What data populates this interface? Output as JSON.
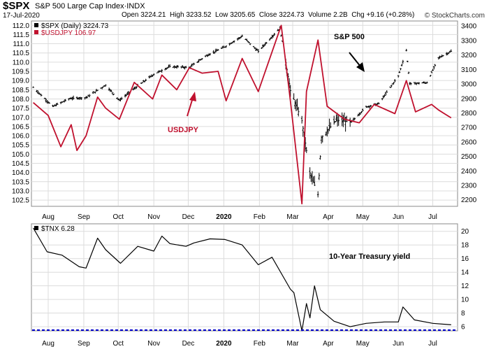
{
  "header": {
    "symbol": "$SPX",
    "full_name": "S&P 500 Large Cap Index",
    "exchange": "INDX",
    "date": "17-Jul-2020",
    "open_label": "Open",
    "open": "3224.21",
    "high_label": "High",
    "high": "3233.52",
    "low_label": "Low",
    "low": "3205.65",
    "close_label": "Close",
    "close": "3224.73",
    "volume_label": "Volume",
    "volume": "2.2B",
    "chg_label": "Chg",
    "chg": "+9.16 (+0.28%)",
    "brand": "© StockCharts.com"
  },
  "legend": {
    "spx": "$SPX (Daily) 3224.73",
    "usdjpy": "$USDJPY 106.97",
    "tnx": "$TNX 6.28"
  },
  "annotations": {
    "usdjpy": "USDJPY",
    "sp500": "S&P 500",
    "tnx": "10-Year Treasury yield"
  },
  "colors": {
    "spx": "#000000",
    "usdjpy": "#c0112e",
    "tnx": "#000000",
    "baseline": "#0000cc",
    "grid": "#dcdcdc"
  },
  "chart_data": [
    {
      "type": "line",
      "title": "S&P 500 Large Cap Index",
      "x_tick_labels": [
        "Aug",
        "Sep",
        "Oct",
        "Nov",
        "Dec",
        "2020",
        "Feb",
        "Mar",
        "Apr",
        "May",
        "Jun",
        "Jul"
      ],
      "left_axis": {
        "series": "$USDJPY",
        "ylim": [
          102.2,
          112.2
        ],
        "ticks": [
          "102.5",
          "103.0",
          "103.5",
          "104.0",
          "104.5",
          "105.0",
          "105.5",
          "106.0",
          "106.5",
          "107.0",
          "107.5",
          "108.0",
          "108.5",
          "109.0",
          "109.5",
          "110.0",
          "110.5",
          "111.0",
          "111.5",
          "112.0"
        ]
      },
      "right_axis": {
        "series": "$SPX",
        "ylim": [
          2160,
          3430
        ],
        "ticks": [
          "2200",
          "2300",
          "2400",
          "2500",
          "2600",
          "2700",
          "2800",
          "2900",
          "3000",
          "3100",
          "3200",
          "3300",
          "3400"
        ]
      },
      "series": [
        {
          "name": "$SPX (Daily)",
          "style": "ohlc-bars",
          "axis": "right",
          "x": [
            "2019-07-19",
            "2019-08-05",
            "2019-08-20",
            "2019-09-03",
            "2019-09-20",
            "2019-10-02",
            "2019-10-18",
            "2019-11-01",
            "2019-11-15",
            "2019-12-02",
            "2019-12-16",
            "2020-01-02",
            "2020-01-17",
            "2020-01-31",
            "2020-02-19",
            "2020-02-28",
            "2020-03-09",
            "2020-03-16",
            "2020-03-23",
            "2020-03-26",
            "2020-04-08",
            "2020-04-21",
            "2020-05-04",
            "2020-05-15",
            "2020-06-01",
            "2020-06-08",
            "2020-06-11",
            "2020-06-26",
            "2020-07-06",
            "2020-07-17"
          ],
          "values": [
            2976,
            2844,
            2900,
            2906,
            2992,
            2887,
            2986,
            3067,
            3120,
            3114,
            3192,
            3257,
            3330,
            3225,
            3386,
            2954,
            2746,
            2386,
            2237,
            2630,
            2750,
            2736,
            2842,
            2864,
            3055,
            3232,
            3002,
            3009,
            3180,
            3225
          ]
        },
        {
          "name": "$USDJPY",
          "style": "line",
          "axis": "left",
          "x": [
            "2019-07-19",
            "2019-08-01",
            "2019-08-12",
            "2019-08-21",
            "2019-08-26",
            "2019-09-03",
            "2019-09-13",
            "2019-09-20",
            "2019-10-02",
            "2019-10-15",
            "2019-10-31",
            "2019-11-08",
            "2019-11-21",
            "2019-12-02",
            "2019-12-13",
            "2019-12-27",
            "2020-01-03",
            "2020-01-17",
            "2020-01-31",
            "2020-02-20",
            "2020-02-28",
            "2020-03-09",
            "2020-03-13",
            "2020-03-23",
            "2020-03-31",
            "2020-04-15",
            "2020-04-28",
            "2020-05-11",
            "2020-05-29",
            "2020-06-08",
            "2020-06-16",
            "2020-06-30",
            "2020-07-06",
            "2020-07-17"
          ],
          "values": [
            107.8,
            107.1,
            105.4,
            106.6,
            105.2,
            106.0,
            108.1,
            107.5,
            106.9,
            108.9,
            108.0,
            109.3,
            108.5,
            109.7,
            109.4,
            109.5,
            107.9,
            110.2,
            108.4,
            112.0,
            107.9,
            102.3,
            108.4,
            111.2,
            107.6,
            106.9,
            106.7,
            107.7,
            107.2,
            109.0,
            107.3,
            107.7,
            107.4,
            106.97
          ]
        }
      ]
    },
    {
      "type": "line",
      "series_name": "$TNX",
      "annotation": "10-Year Treasury yield",
      "x_tick_labels": [
        "Aug",
        "Sep",
        "Oct",
        "Nov",
        "Dec",
        "2020",
        "Feb",
        "Mar",
        "Apr",
        "May",
        "Jun",
        "Jul"
      ],
      "right_axis": {
        "ylim": [
          5.5,
          21
        ],
        "ticks": [
          "6",
          "8",
          "10",
          "12",
          "14",
          "16",
          "18",
          "20"
        ]
      },
      "baseline_value": 5.5,
      "series": [
        {
          "name": "$TNX",
          "axis": "right",
          "x": [
            "2019-07-19",
            "2019-07-31",
            "2019-08-13",
            "2019-08-28",
            "2019-09-03",
            "2019-09-13",
            "2019-09-20",
            "2019-10-03",
            "2019-10-18",
            "2019-11-01",
            "2019-11-08",
            "2019-11-15",
            "2019-11-29",
            "2019-12-06",
            "2019-12-20",
            "2020-01-02",
            "2020-01-17",
            "2020-01-31",
            "2020-02-12",
            "2020-02-28",
            "2020-03-02",
            "2020-03-09",
            "2020-03-13",
            "2020-03-16",
            "2020-03-20",
            "2020-03-25",
            "2020-04-06",
            "2020-04-20",
            "2020-05-04",
            "2020-05-20",
            "2020-06-01",
            "2020-06-05",
            "2020-06-15",
            "2020-07-01",
            "2020-07-17"
          ],
          "values": [
            20.5,
            17.0,
            16.5,
            14.8,
            14.6,
            19.0,
            17.3,
            15.3,
            17.8,
            17.1,
            19.3,
            18.2,
            17.8,
            18.3,
            18.9,
            18.8,
            18.0,
            15.1,
            16.2,
            11.5,
            11.0,
            5.4,
            9.4,
            7.3,
            12.0,
            8.5,
            6.8,
            6.0,
            6.5,
            6.7,
            6.7,
            8.9,
            7.0,
            6.5,
            6.28
          ]
        }
      ]
    }
  ]
}
